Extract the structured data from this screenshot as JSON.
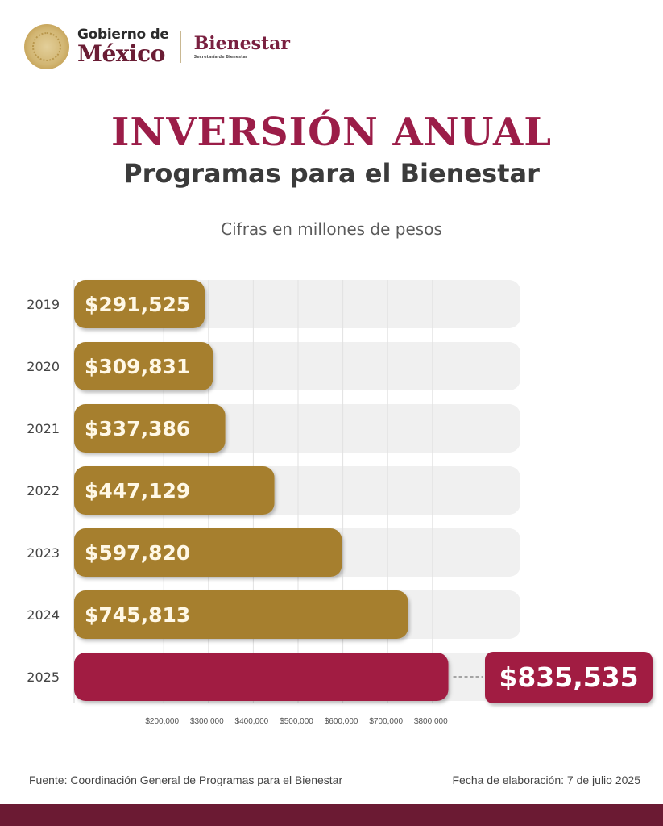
{
  "header": {
    "gov_line1": "Gobierno de",
    "gov_line2": "México",
    "dept_name": "Bienestar",
    "dept_sub": "Secretaría de Bienestar"
  },
  "colors": {
    "title": "#9b1d48",
    "gold_bar": "#a67f2f",
    "highlight_bar": "#a11d43",
    "track": "#f0f0f0",
    "footer_band": "#6b1a33"
  },
  "chart_data": {
    "type": "bar",
    "orientation": "horizontal",
    "title": "INVERSIÓN ANUAL",
    "subtitle": "Programas para el Bienestar",
    "note": "Cifras en millones de pesos",
    "categories": [
      "2019",
      "2020",
      "2021",
      "2022",
      "2023",
      "2024",
      "2025"
    ],
    "values": [
      291525,
      309831,
      337386,
      447129,
      597820,
      745813,
      835535
    ],
    "value_labels": [
      "$291,525",
      "$309,831",
      "$337,386",
      "$447,129",
      "$597,820",
      "$745,813",
      "$835,535"
    ],
    "highlight_index": 6,
    "x_ticks": [
      200000,
      300000,
      400000,
      500000,
      600000,
      700000,
      800000
    ],
    "x_tick_labels": [
      "$200,000",
      "$300,000",
      "$400,000",
      "$500,000",
      "$600,000",
      "$700,000",
      "$800,000"
    ],
    "xlim": [
      0,
      1000000
    ],
    "grid": true,
    "xlabel": "",
    "ylabel": ""
  },
  "footer": {
    "source": "Fuente: Coordinación General de Programas para el Bienestar",
    "date": "Fecha de elaboración: 7 de julio 2025"
  }
}
